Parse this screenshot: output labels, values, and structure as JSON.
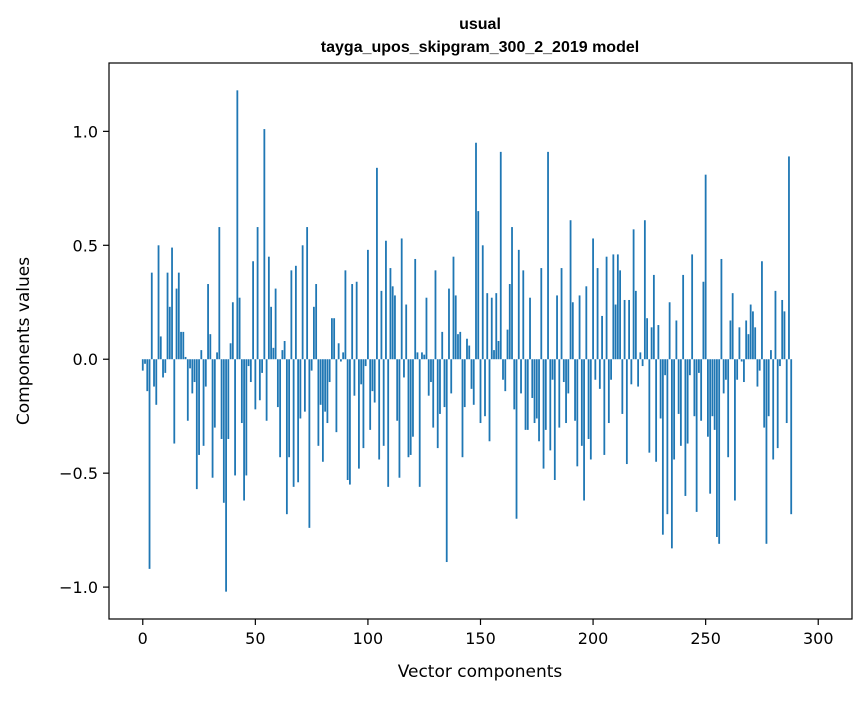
{
  "chart_data": {
    "type": "bar",
    "title_line1": "usual",
    "title_line2": "tayga_upos_skipgram_300_2_2019 model",
    "xlabel": "Vector components",
    "ylabel": "Components values",
    "xlim": [
      -15,
      315
    ],
    "ylim": [
      -1.14,
      1.3
    ],
    "xticks": [
      0,
      50,
      100,
      150,
      200,
      250,
      300
    ],
    "xtick_labels": [
      "0",
      "50",
      "100",
      "150",
      "200",
      "250",
      "300"
    ],
    "yticks": [
      -1.0,
      -0.5,
      0.0,
      0.5,
      1.0
    ],
    "ytick_labels": [
      "−1.0",
      "−0.5",
      "0.0",
      "0.5",
      "1.0"
    ],
    "color": "#1f77b4",
    "values": [
      -0.05,
      -0.02,
      -0.14,
      -0.92,
      0.38,
      -0.12,
      -0.2,
      0.5,
      0.1,
      -0.08,
      -0.06,
      0.38,
      0.23,
      0.49,
      -0.37,
      0.31,
      0.38,
      0.12,
      0.12,
      0.01,
      -0.27,
      -0.04,
      -0.15,
      -0.1,
      -0.57,
      -0.42,
      0.04,
      -0.38,
      -0.12,
      0.33,
      0.11,
      -0.52,
      -0.3,
      0.03,
      0.58,
      -0.35,
      -0.63,
      -1.02,
      -0.35,
      0.07,
      0.25,
      -0.51,
      1.18,
      0.27,
      -0.28,
      -0.62,
      -0.51,
      -0.03,
      -0.1,
      0.43,
      -0.22,
      0.58,
      -0.18,
      -0.06,
      1.01,
      -0.27,
      0.45,
      0.23,
      0.05,
      0.31,
      -0.21,
      -0.43,
      0.04,
      0.08,
      -0.68,
      -0.43,
      0.39,
      -0.56,
      0.41,
      -0.54,
      -0.26,
      0.5,
      -0.23,
      0.58,
      -0.74,
      -0.05,
      0.23,
      0.33,
      -0.38,
      -0.2,
      -0.45,
      -0.23,
      -0.28,
      -0.1,
      0.18,
      0.18,
      -0.32,
      0.07,
      -0.01,
      0.03,
      0.39,
      -0.53,
      -0.55,
      0.33,
      -0.16,
      0.34,
      -0.48,
      -0.11,
      -0.39,
      -0.03,
      0.48,
      -0.31,
      -0.14,
      -0.19,
      0.84,
      -0.44,
      0.3,
      -0.38,
      0.52,
      -0.56,
      0.4,
      0.32,
      0.28,
      -0.27,
      -0.52,
      0.53,
      -0.08,
      0.24,
      -0.43,
      -0.42,
      -0.34,
      0.44,
      0.03,
      -0.56,
      0.03,
      0.02,
      0.27,
      -0.16,
      -0.1,
      -0.3,
      0.39,
      -0.39,
      -0.24,
      0.12,
      -0.21,
      -0.89,
      0.31,
      -0.15,
      0.45,
      0.28,
      0.11,
      0.12,
      -0.43,
      -0.21,
      0.09,
      0.06,
      -0.13,
      -0.2,
      0.95,
      0.65,
      -0.28,
      0.5,
      -0.25,
      0.29,
      -0.36,
      0.27,
      0.04,
      0.29,
      0.08,
      0.91,
      -0.09,
      -0.14,
      0.13,
      0.33,
      0.58,
      -0.22,
      -0.7,
      0.48,
      -0.15,
      0.39,
      -0.31,
      -0.31,
      0.27,
      -0.17,
      -0.28,
      -0.26,
      -0.36,
      0.4,
      -0.48,
      -0.31,
      0.91,
      -0.4,
      -0.09,
      -0.53,
      0.28,
      -0.3,
      0.4,
      -0.1,
      -0.28,
      -0.15,
      0.61,
      0.25,
      -0.27,
      -0.47,
      0.28,
      -0.38,
      -0.62,
      0.32,
      -0.35,
      -0.44,
      0.53,
      -0.09,
      0.4,
      -0.13,
      0.19,
      -0.42,
      0.45,
      -0.28,
      -0.09,
      0.46,
      0.24,
      0.46,
      0.39,
      -0.24,
      0.26,
      -0.46,
      0.26,
      -0.11,
      0.57,
      0.3,
      -0.12,
      0.03,
      -0.03,
      0.61,
      0.18,
      -0.41,
      0.14,
      0.37,
      -0.45,
      0.15,
      -0.26,
      -0.77,
      -0.07,
      -0.68,
      0.25,
      -0.83,
      -0.44,
      0.17,
      -0.24,
      -0.38,
      0.37,
      -0.6,
      -0.37,
      -0.07,
      0.46,
      -0.25,
      -0.67,
      -0.06,
      -0.27,
      0.34,
      0.81,
      -0.34,
      -0.59,
      -0.25,
      -0.31,
      -0.78,
      -0.81,
      0.44,
      -0.15,
      -0.09,
      -0.43,
      0.17,
      0.29,
      -0.62,
      -0.09,
      0.14,
      -0.01,
      -0.1,
      0.17,
      0.11,
      0.24,
      0.21,
      0.14,
      -0.12,
      -0.05,
      0.43,
      -0.3,
      -0.81,
      -0.25,
      0.04,
      -0.44,
      0.3,
      -0.39,
      -0.03,
      0.26,
      0.21,
      -0.28,
      0.89,
      -0.68
    ]
  }
}
